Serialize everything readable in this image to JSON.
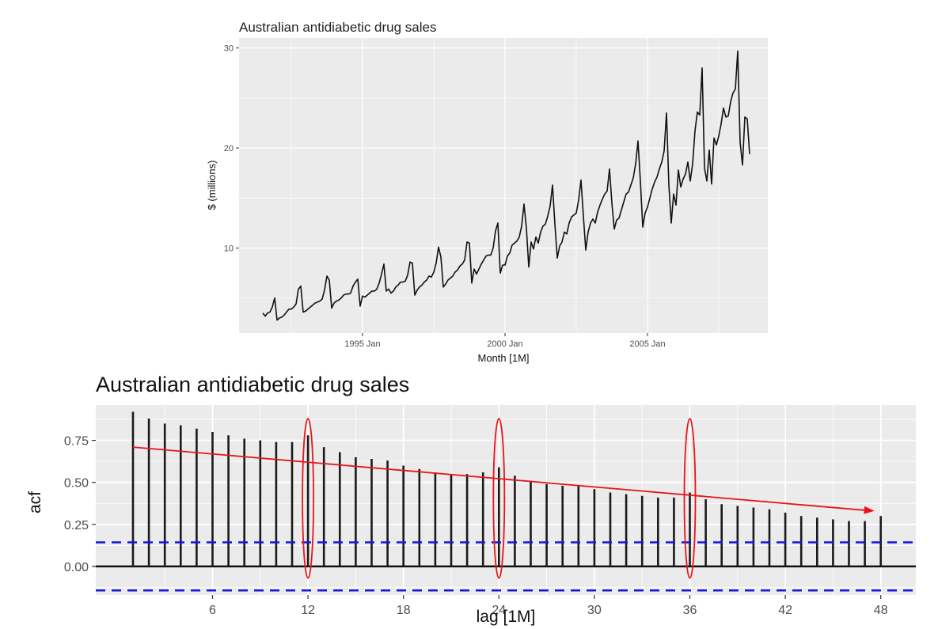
{
  "chart_data": [
    {
      "type": "line",
      "title": "Australian antidiabetic drug sales",
      "xlabel": "Month [1M]",
      "ylabel": "$ (millions)",
      "x_ticks": [
        "1995 Jan",
        "2000 Jan",
        "2005 Jan"
      ],
      "y_ticks": [
        "10",
        "20",
        "30"
      ],
      "ylim": [
        1.5,
        31
      ],
      "grid": true,
      "series": [
        {
          "x_start": "1991-07",
          "frequency": "monthly",
          "values": [
            3.5,
            3.2,
            3.5,
            3.6,
            4.1,
            5.0,
            2.8,
            3.0,
            3.1,
            3.3,
            3.6,
            3.9,
            3.9,
            4.1,
            4.4,
            5.9,
            6.2,
            3.6,
            3.7,
            3.9,
            4.1,
            4.3,
            4.5,
            4.6,
            4.7,
            4.9,
            5.8,
            7.2,
            6.8,
            4.0,
            4.5,
            4.7,
            4.8,
            5.0,
            5.3,
            5.4,
            5.4,
            5.5,
            6.2,
            6.6,
            6.9,
            4.2,
            5.2,
            5.1,
            5.3,
            5.5,
            5.7,
            5.7,
            5.9,
            6.5,
            7.4,
            8.4,
            5.7,
            5.9,
            5.5,
            5.7,
            6.1,
            6.3,
            6.6,
            6.6,
            6.7,
            7.3,
            8.6,
            8.5,
            5.3,
            5.8,
            6.1,
            6.3,
            6.6,
            6.8,
            7.2,
            7.1,
            7.6,
            8.5,
            10.1,
            9.1,
            6.1,
            6.4,
            6.8,
            7.0,
            7.2,
            7.6,
            7.8,
            8.2,
            8.4,
            8.8,
            10.6,
            10.5,
            6.5,
            7.9,
            7.4,
            7.9,
            8.4,
            8.8,
            9.2,
            9.3,
            9.3,
            10.0,
            11.7,
            12.5,
            7.5,
            8.3,
            8.3,
            9.2,
            9.5,
            10.3,
            10.5,
            10.7,
            11.1,
            12.2,
            14.4,
            12.0,
            8.1,
            10.6,
            9.9,
            11.1,
            10.5,
            11.6,
            12.2,
            12.4,
            13.2,
            14.2,
            16.3,
            12.4,
            9.0,
            10.2,
            10.6,
            11.6,
            11.4,
            12.5,
            13.1,
            13.3,
            13.5,
            14.8,
            16.8,
            13.2,
            9.8,
            11.6,
            12.5,
            12.9,
            12.5,
            13.6,
            14.3,
            14.9,
            15.4,
            15.7,
            17.9,
            14.5,
            11.9,
            12.8,
            13.0,
            13.8,
            14.6,
            15.4,
            15.6,
            16.3,
            17.0,
            18.4,
            20.7,
            16.7,
            12.1,
            13.5,
            14.1,
            15.0,
            15.9,
            16.6,
            17.1,
            17.9,
            18.6,
            19.7,
            23.5,
            16.3,
            12.5,
            15.4,
            14.3,
            17.8,
            16.1,
            16.9,
            17.4,
            18.6,
            16.7,
            18.4,
            21.7,
            23.6,
            23.3,
            28.0,
            18.0,
            16.7,
            19.8,
            16.4,
            21.0,
            20.3,
            21.2,
            22.4,
            24.0,
            23.1,
            23.2,
            24.6,
            25.5,
            25.9,
            29.7,
            20.6,
            18.3,
            23.1,
            22.9,
            19.4
          ]
        }
      ]
    },
    {
      "type": "bar",
      "title": "Australian antidiabetic drug sales",
      "xlabel": "lag [1M]",
      "ylabel": "acf",
      "x_ticks": [
        "6",
        "12",
        "18",
        "24",
        "30",
        "36",
        "42",
        "48"
      ],
      "y_ticks": [
        "0.00",
        "0.25",
        "0.50",
        "0.75"
      ],
      "ylim": [
        -0.17,
        0.96
      ],
      "confidence_bound": 0.143,
      "grid": true,
      "lags": [
        1,
        2,
        3,
        4,
        5,
        6,
        7,
        8,
        9,
        10,
        11,
        12,
        13,
        14,
        15,
        16,
        17,
        18,
        19,
        20,
        21,
        22,
        23,
        24,
        25,
        26,
        27,
        28,
        29,
        30,
        31,
        32,
        33,
        34,
        35,
        36,
        37,
        38,
        39,
        40,
        41,
        42,
        43,
        44,
        45,
        46,
        47,
        48
      ],
      "values": [
        0.92,
        0.88,
        0.85,
        0.84,
        0.82,
        0.8,
        0.78,
        0.76,
        0.75,
        0.74,
        0.74,
        0.78,
        0.71,
        0.68,
        0.65,
        0.64,
        0.63,
        0.6,
        0.58,
        0.56,
        0.55,
        0.55,
        0.56,
        0.59,
        0.54,
        0.51,
        0.49,
        0.48,
        0.48,
        0.46,
        0.44,
        0.43,
        0.42,
        0.41,
        0.41,
        0.44,
        0.4,
        0.37,
        0.36,
        0.35,
        0.34,
        0.32,
        0.3,
        0.29,
        0.28,
        0.27,
        0.27,
        0.3
      ],
      "annotations": {
        "ellipse_lags": [
          12,
          24,
          36
        ],
        "ellipse_color": "#e8141b",
        "trend_arrow": {
          "from": [
            1,
            0.71
          ],
          "to": [
            48,
            0.33
          ],
          "color": "#e8141b"
        }
      },
      "colors": {
        "bar": "#1a1a1a",
        "bound": "#1414e0",
        "panel": "#ebebeb",
        "grid": "#ffffff"
      }
    }
  ]
}
